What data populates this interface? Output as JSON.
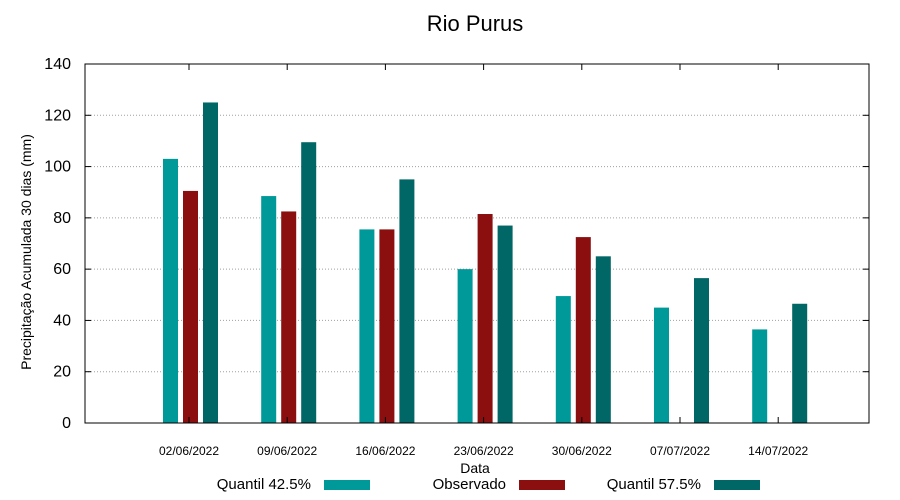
{
  "chart_data": {
    "type": "bar",
    "title": "Rio Purus",
    "xlabel": "Data",
    "ylabel": "Precipitação Acumulada 30 dias (mm)",
    "ylim": [
      0,
      140
    ],
    "yticks": [
      0,
      20,
      40,
      60,
      80,
      100,
      120,
      140
    ],
    "grid": true,
    "legend_position": "bottom",
    "categories": [
      "02/06/2022",
      "09/06/2022",
      "16/06/2022",
      "23/06/2022",
      "30/06/2022",
      "07/07/2022",
      "14/07/2022"
    ],
    "series": [
      {
        "name": "Quantil 42.5%",
        "color": "#009999",
        "values": [
          103,
          88.5,
          75.5,
          60,
          49.5,
          45,
          36.5
        ]
      },
      {
        "name": "Observado",
        "color": "#8b0f0f",
        "values": [
          90.5,
          82.5,
          75.5,
          81.5,
          72.5,
          null,
          null
        ]
      },
      {
        "name": "Quantil 57.5%",
        "color": "#006666",
        "values": [
          125,
          109.5,
          95,
          77,
          65,
          56.5,
          46.5
        ]
      }
    ]
  }
}
